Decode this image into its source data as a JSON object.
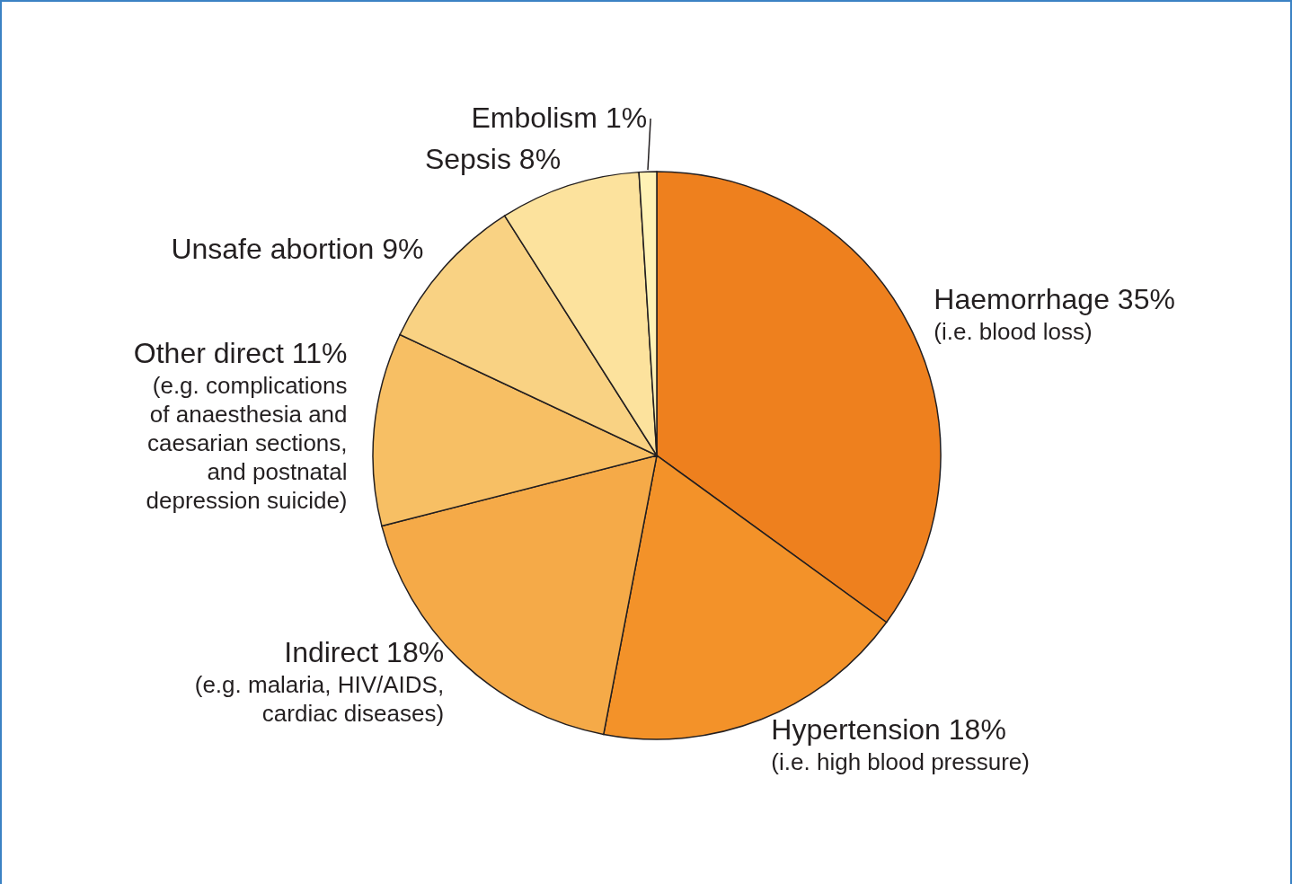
{
  "chart_data": {
    "type": "pie",
    "categories": [
      "Haemorrhage",
      "Hypertension",
      "Indirect",
      "Other direct",
      "Unsafe abortion",
      "Sepsis",
      "Embolism"
    ],
    "values": [
      35,
      18,
      18,
      11,
      9,
      8,
      1
    ],
    "colors": [
      "#ee801e",
      "#f39229",
      "#f5aa48",
      "#f7bf64",
      "#f9d283",
      "#fce29d",
      "#fff2b5"
    ],
    "value_labels": [
      "35%",
      "18%",
      "18%",
      "11%",
      "9%",
      "8%",
      "1%"
    ],
    "annotations": [
      {
        "text": "(i.e. blood loss)",
        "x": "Haemorrhage"
      },
      {
        "text": "(i.e. high blood pressure)",
        "x": "Hypertension"
      },
      {
        "text": "(e.g. malaria, HIV/AIDS,\ncardiac diseases)",
        "x": "Indirect"
      },
      {
        "text": "(e.g. complications\nof anaesthesia and\ncaesarian sections,\nand postnatal\ndepression suicide)",
        "x": "Other direct"
      }
    ]
  }
}
